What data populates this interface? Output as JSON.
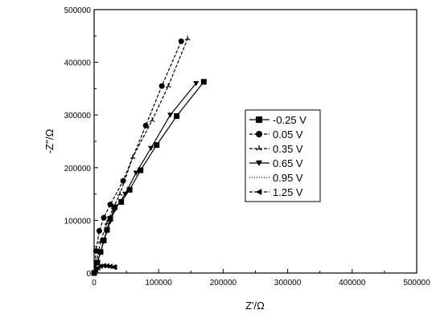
{
  "chart_data": {
    "type": "line",
    "xlabel": "Z'/Ω",
    "ylabel": "-Z''/Ω",
    "xlim": [
      0,
      500000
    ],
    "ylim": [
      0,
      500000
    ],
    "x_ticks": [
      "0",
      "100000",
      "200000",
      "300000",
      "400000",
      "500000"
    ],
    "y_ticks": [
      "0",
      "100000",
      "200000",
      "300000",
      "400000",
      "500000"
    ],
    "grid": false,
    "legend_position": "right-center",
    "series": [
      {
        "name": "-0.25 V",
        "marker": "square",
        "line": "solid",
        "x": [
          0,
          5000,
          10000,
          15000,
          20000,
          25000,
          32000,
          42000,
          55000,
          72000,
          97000,
          128000,
          170000
        ],
        "y": [
          0,
          20000,
          40000,
          62000,
          82000,
          103000,
          125000,
          135000,
          158000,
          195000,
          243000,
          298000,
          363000
        ]
      },
      {
        "name": "0.05 V",
        "marker": "circle",
        "line": "dash",
        "x": [
          0,
          3000,
          8000,
          15000,
          25000,
          45000,
          80000,
          105000,
          135000
        ],
        "y": [
          0,
          42000,
          80000,
          105000,
          130000,
          175000,
          280000,
          355000,
          440000
        ]
      },
      {
        "name": "0.35 V",
        "marker": "tri-star",
        "line": "dash",
        "x": [
          0,
          10000,
          20000,
          30000,
          40000,
          60000,
          90000,
          115000,
          145000
        ],
        "y": [
          0,
          60000,
          95000,
          125000,
          150000,
          220000,
          290000,
          355000,
          445000
        ]
      },
      {
        "name": "0.65 V",
        "marker": "triangle-down",
        "line": "solid",
        "x": [
          0,
          5000,
          10000,
          15000,
          20000,
          25000,
          32000,
          48000,
          65000,
          88000,
          118000,
          158000
        ],
        "y": [
          0,
          20000,
          40000,
          60000,
          80000,
          98000,
          120000,
          150000,
          190000,
          237000,
          300000,
          360000
        ]
      },
      {
        "name": "0.95 V",
        "marker": "none",
        "line": "dot",
        "x": [
          0,
          5000,
          10000,
          15000,
          20000,
          25000,
          30000
        ],
        "y": [
          0,
          8000,
          12000,
          14000,
          13000,
          12000,
          11000
        ]
      },
      {
        "name": "1.25 V",
        "marker": "triangle-left",
        "line": "dash",
        "x": [
          0,
          3000,
          6000,
          10000,
          15000,
          20000,
          25000,
          30000,
          32000
        ],
        "y": [
          0,
          6000,
          10000,
          13000,
          14000,
          13500,
          12500,
          11500,
          11000
        ]
      }
    ]
  }
}
